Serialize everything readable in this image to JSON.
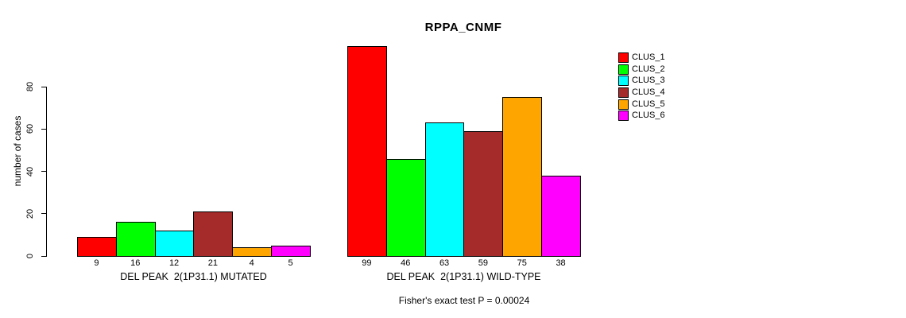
{
  "chart_data": {
    "type": "bar",
    "title": "RPPA_CNMF",
    "ylabel": "number of cases",
    "yticks": [
      0,
      20,
      40,
      60,
      80
    ],
    "ylim": [
      0,
      100
    ],
    "grid": false,
    "legend_position": "right",
    "series_labels": [
      "CLUS_1",
      "CLUS_2",
      "CLUS_3",
      "CLUS_4",
      "CLUS_5",
      "CLUS_6"
    ],
    "colors": [
      "#ff0000",
      "#00ff00",
      "#00ffff",
      "#a52a2a",
      "#ffa500",
      "#ff00ff"
    ],
    "groups": [
      {
        "label": "DEL PEAK  2(1P31.1) MUTATED",
        "values": [
          9,
          16,
          12,
          21,
          4,
          5
        ]
      },
      {
        "label": "DEL PEAK  2(1P31.1) WILD-TYPE",
        "values": [
          99,
          46,
          63,
          59,
          75,
          38
        ]
      }
    ],
    "annotation": "Fisher's exact test P = 0.00024"
  }
}
